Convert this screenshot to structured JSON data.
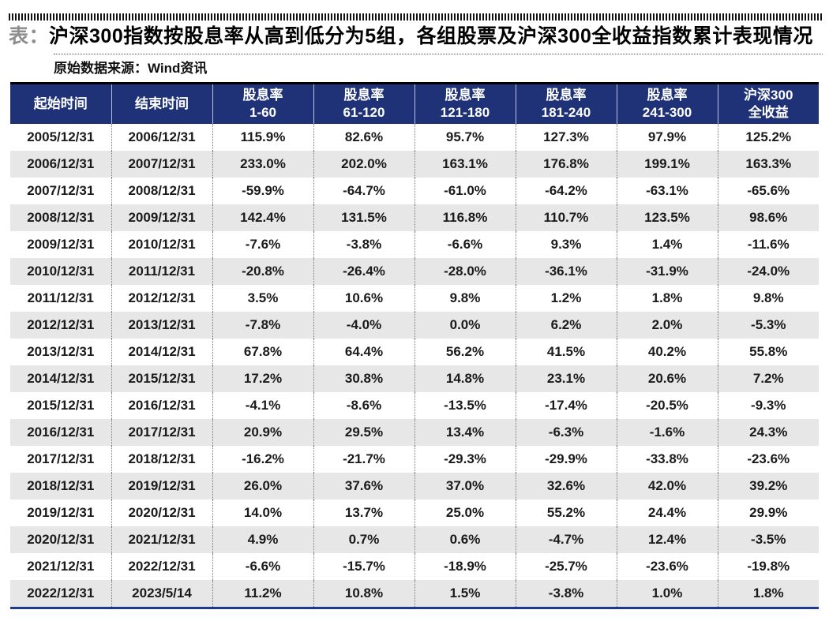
{
  "page": {
    "title_prefix": "表：",
    "title": "沪深300指数按股息率从高到低分为5组，各组股票及沪深300全收益指数累计表现情况",
    "source": "原始数据来源：Wind资讯"
  },
  "colors": {
    "header_bg": "#1f3278",
    "row_alt_bg": "#e7e7e7",
    "table_top_border": "#000000",
    "table_bottom_border": "#1f3a8c",
    "title_prefix_color": "#8e8e8e"
  },
  "table": {
    "columns": [
      [
        "起始时间"
      ],
      [
        "结束时间"
      ],
      [
        "股息率",
        "1-60"
      ],
      [
        "股息率",
        "61-120"
      ],
      [
        "股息率",
        "121-180"
      ],
      [
        "股息率",
        "181-240"
      ],
      [
        "股息率",
        "241-300"
      ],
      [
        "沪深300",
        "全收益"
      ]
    ],
    "rows": [
      [
        "2005/12/31",
        "2006/12/31",
        "115.9%",
        "82.6%",
        "95.7%",
        "127.3%",
        "97.9%",
        "125.2%"
      ],
      [
        "2006/12/31",
        "2007/12/31",
        "233.0%",
        "202.0%",
        "163.1%",
        "176.8%",
        "199.1%",
        "163.3%"
      ],
      [
        "2007/12/31",
        "2008/12/31",
        "-59.9%",
        "-64.7%",
        "-61.0%",
        "-64.2%",
        "-63.1%",
        "-65.6%"
      ],
      [
        "2008/12/31",
        "2009/12/31",
        "142.4%",
        "131.5%",
        "116.8%",
        "110.7%",
        "123.5%",
        "98.6%"
      ],
      [
        "2009/12/31",
        "2010/12/31",
        "-7.6%",
        "-3.8%",
        "-6.6%",
        "9.3%",
        "1.4%",
        "-11.6%"
      ],
      [
        "2010/12/31",
        "2011/12/31",
        "-20.8%",
        "-26.4%",
        "-28.0%",
        "-36.1%",
        "-31.9%",
        "-24.0%"
      ],
      [
        "2011/12/31",
        "2012/12/31",
        "3.5%",
        "10.6%",
        "9.8%",
        "1.2%",
        "1.8%",
        "9.8%"
      ],
      [
        "2012/12/31",
        "2013/12/31",
        "-7.8%",
        "-4.0%",
        "0.0%",
        "6.2%",
        "2.0%",
        "-5.3%"
      ],
      [
        "2013/12/31",
        "2014/12/31",
        "67.8%",
        "64.4%",
        "56.2%",
        "41.5%",
        "40.2%",
        "55.8%"
      ],
      [
        "2014/12/31",
        "2015/12/31",
        "17.2%",
        "30.8%",
        "14.8%",
        "23.1%",
        "20.6%",
        "7.2%"
      ],
      [
        "2015/12/31",
        "2016/12/31",
        "-4.1%",
        "-8.6%",
        "-13.5%",
        "-17.4%",
        "-20.5%",
        "-9.3%"
      ],
      [
        "2016/12/31",
        "2017/12/31",
        "20.9%",
        "29.5%",
        "13.4%",
        "-6.3%",
        "-1.6%",
        "24.3%"
      ],
      [
        "2017/12/31",
        "2018/12/31",
        "-16.2%",
        "-21.7%",
        "-29.3%",
        "-29.9%",
        "-33.8%",
        "-23.6%"
      ],
      [
        "2018/12/31",
        "2019/12/31",
        "26.0%",
        "37.6%",
        "37.0%",
        "32.6%",
        "42.0%",
        "39.2%"
      ],
      [
        "2019/12/31",
        "2020/12/31",
        "14.0%",
        "13.7%",
        "25.0%",
        "55.2%",
        "24.4%",
        "29.9%"
      ],
      [
        "2020/12/31",
        "2021/12/31",
        "4.9%",
        "0.7%",
        "0.6%",
        "-4.7%",
        "12.4%",
        "-3.5%"
      ],
      [
        "2021/12/31",
        "2022/12/31",
        "-6.6%",
        "-15.7%",
        "-18.9%",
        "-25.7%",
        "-23.6%",
        "-19.8%"
      ],
      [
        "2022/12/31",
        "2023/5/14",
        "11.2%",
        "10.8%",
        "1.5%",
        "-3.8%",
        "1.0%",
        "1.8%"
      ]
    ]
  }
}
